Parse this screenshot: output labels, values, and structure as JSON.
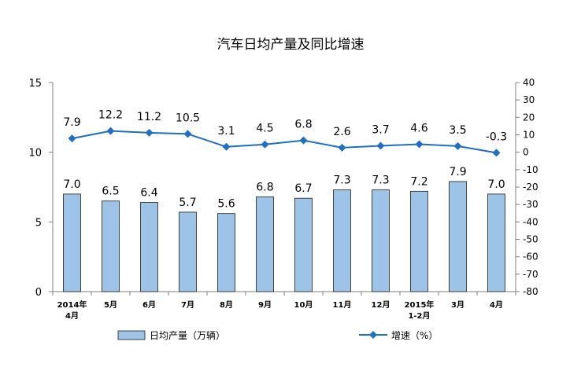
{
  "chart_data": {
    "type": "bar",
    "title": "汽车日均产量及同比增速",
    "categories": [
      [
        "2014年",
        "4月"
      ],
      [
        "5月"
      ],
      [
        "6月"
      ],
      [
        "7月"
      ],
      [
        "8月"
      ],
      [
        "9月"
      ],
      [
        "10月"
      ],
      [
        "11月"
      ],
      [
        "12月"
      ],
      [
        "2015年",
        "1-2月"
      ],
      [
        "3月"
      ],
      [
        "4月"
      ]
    ],
    "series": [
      {
        "name": "日均产量（万辆）",
        "type": "bar",
        "axis": "left",
        "values": [
          7.0,
          6.5,
          6.4,
          5.7,
          5.6,
          6.8,
          6.7,
          7.3,
          7.3,
          7.2,
          7.9,
          7.0
        ],
        "labels": [
          "7.0",
          "6.5",
          "6.4",
          "5.7",
          "5.6",
          "6.8",
          "6.7",
          "7.3",
          "7.3",
          "7.2",
          "7.9",
          "7.0"
        ],
        "color": "#9dc3e6"
      },
      {
        "name": "增速（%）",
        "type": "line",
        "axis": "right",
        "values": [
          7.9,
          12.2,
          11.2,
          10.5,
          3.1,
          4.5,
          6.8,
          2.6,
          3.7,
          4.6,
          3.5,
          -0.3
        ],
        "labels": [
          "7.9",
          "12.2",
          "11.2",
          "10.5",
          "3.1",
          "4.5",
          "6.8",
          "2.6",
          "3.7",
          "4.6",
          "3.5",
          "-0.3"
        ],
        "color": "#1f6fc5"
      }
    ],
    "y_left": {
      "min": 0,
      "max": 15,
      "ticks": [
        0,
        5,
        10,
        15
      ],
      "tick_labels": [
        "0",
        "5",
        "10",
        "15"
      ]
    },
    "y_right": {
      "min": -80,
      "max": 40,
      "ticks": [
        40,
        30,
        20,
        10,
        0,
        -10,
        -20,
        -30,
        -40,
        -50,
        -60,
        -70,
        -80
      ],
      "tick_labels": [
        "40",
        "30",
        "20",
        "10",
        "0",
        "-10",
        "-20",
        "-30",
        "-40",
        "-50",
        "-60",
        "-70",
        "-80"
      ]
    },
    "grid": false,
    "legend": "bottom"
  }
}
